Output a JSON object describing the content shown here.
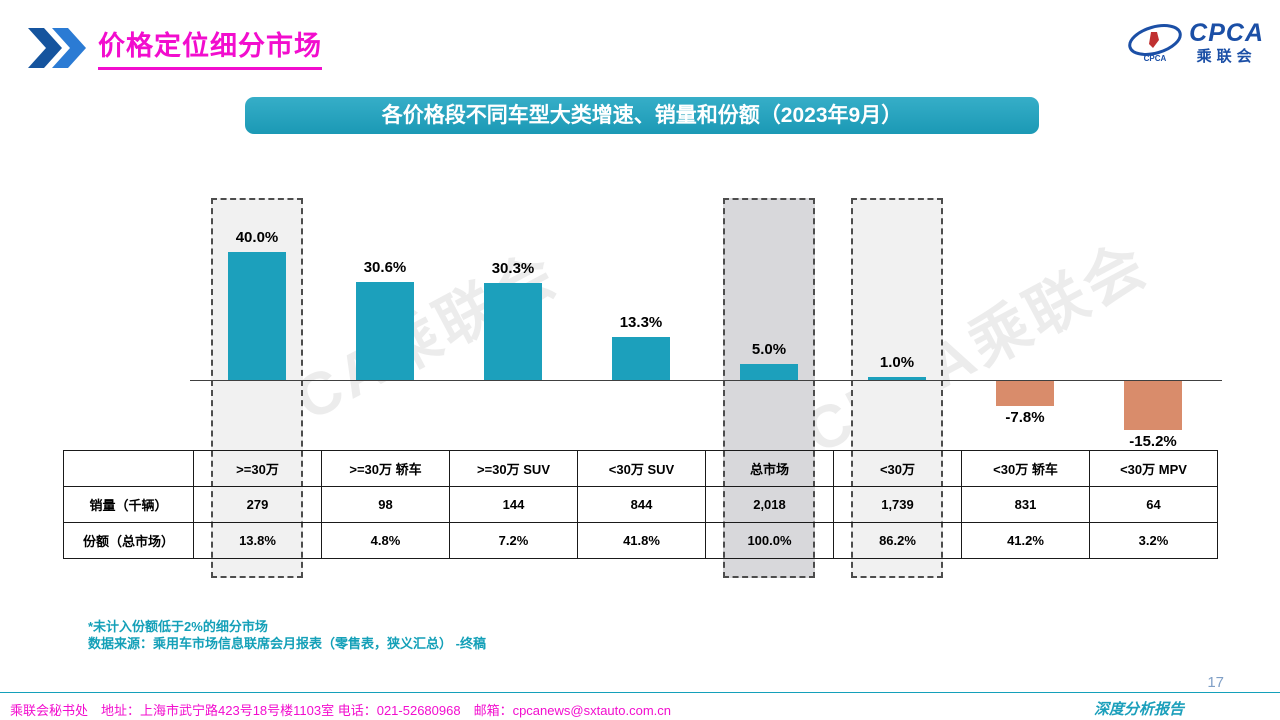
{
  "header": {
    "title": "价格定位细分市场",
    "logo": {
      "main": "CPCA",
      "sub": "乘联会",
      "emblem_caption": "CPCA"
    }
  },
  "banner": {
    "title": "各价格段不同车型大类增速、销量和份额（2023年9月）"
  },
  "watermark": {
    "text": "CPCA乘联会"
  },
  "chart_data": {
    "type": "bar",
    "title": "各价格段不同车型大类增速、销量和份额（2023年9月）",
    "categories": [
      ">=30万",
      ">=30万 轿车",
      ">=30万 SUV",
      "<30万 SUV",
      "总市场",
      "<30万",
      "<30万 轿车",
      "<30万 MPV"
    ],
    "values": [
      40.0,
      30.6,
      30.3,
      13.3,
      5.0,
      1.0,
      -7.8,
      -15.2
    ],
    "value_labels": [
      "40.0%",
      "30.6%",
      "30.3%",
      "13.3%",
      "5.0%",
      "1.0%",
      "-7.8%",
      "-15.2%"
    ],
    "highlighted_columns": [
      0,
      4,
      5
    ],
    "highlight_fills": [
      "#F1F1F1",
      "#D8D8DB",
      "#F1F1F1"
    ],
    "colors": {
      "positive": "#1CA0BC",
      "negative": "#D98C6B"
    },
    "ylim": [
      -20,
      45
    ],
    "grid": false,
    "legend": "none",
    "table": {
      "corner": "",
      "row_headers": [
        "销量（千辆）",
        "份额（总市场）"
      ],
      "rows": [
        [
          "279",
          "98",
          "144",
          "844",
          "2,018",
          "1,739",
          "831",
          "64"
        ],
        [
          "13.8%",
          "4.8%",
          "7.2%",
          "41.8%",
          "100.0%",
          "86.2%",
          "41.2%",
          "3.2%"
        ]
      ]
    }
  },
  "notes": {
    "line1": "*未计入份额低于2%的细分市场",
    "line2": "数据来源：乘用车市场信息联席会月报表（零售表，狭义汇总） -终稿"
  },
  "footer": {
    "text": "乘联会秘书处　地址：上海市武宁路423号18号楼1103室 电话：021-52680968　邮箱：cpcanews@sxtauto.com.cn",
    "report_label": "深度分析报告",
    "page_number": "17"
  }
}
